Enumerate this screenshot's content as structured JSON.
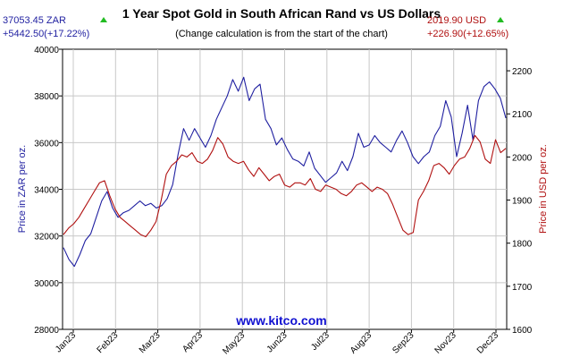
{
  "chart_data": {
    "type": "line",
    "title": "1 Year Spot Gold in South African Rand vs US Dollars",
    "subtitle": "(Change calculation is from the start of the chart)",
    "watermark": "www.kitco.com",
    "left_axis": {
      "label": "Price in ZAR per oz.",
      "ylim": [
        28000,
        40000
      ],
      "ticks": [
        "28000",
        "30000",
        "32000",
        "34000",
        "36000",
        "38000",
        "40000"
      ],
      "color": "#1f1fa0"
    },
    "right_axis": {
      "label": "Price in USD per oz.",
      "ylim": [
        1600,
        2250
      ],
      "ticks": [
        "1600",
        "1700",
        "1800",
        "1900",
        "2000",
        "2100",
        "2200"
      ],
      "color": "#b01010"
    },
    "x_ticks": [
      "Jan23",
      "Feb23",
      "Mar23",
      "Apr23",
      "May23",
      "Jun23",
      "Jul23",
      "Aug23",
      "Sep23",
      "Nov23",
      "Dec23"
    ],
    "grid": true,
    "zar_summary": {
      "price": "37053.45 ZAR",
      "change": "+5442.50(+17.22%)"
    },
    "usd_summary": {
      "price": "2019.90 USD",
      "change": "+226.90(+12.65%)"
    },
    "series": [
      {
        "name": "ZAR",
        "axis": "left",
        "color": "#1f1fa0",
        "values": [
          31500,
          31000,
          30700,
          31200,
          31800,
          32100,
          32800,
          33500,
          33900,
          33200,
          32800,
          33000,
          33100,
          33300,
          33500,
          33300,
          33400,
          33200,
          33300,
          33600,
          34200,
          35500,
          36600,
          36100,
          36600,
          36200,
          35800,
          36300,
          37000,
          37500,
          38000,
          38700,
          38200,
          38800,
          37800,
          38300,
          38500,
          37000,
          36600,
          35900,
          36200,
          35700,
          35300,
          35200,
          35000,
          35600,
          34900,
          34600,
          34300,
          34500,
          34700,
          35200,
          34800,
          35400,
          36400,
          35800,
          35900,
          36300,
          36000,
          35800,
          35600,
          36100,
          36500,
          36000,
          35400,
          35100,
          35400,
          35600,
          36300,
          36700,
          37800,
          37100,
          35400,
          36400,
          37600,
          36100,
          37800,
          38400,
          38600,
          38300,
          37900,
          37050
        ]
      },
      {
        "name": "USD",
        "axis": "right",
        "color": "#b01010",
        "values": [
          1820,
          1835,
          1845,
          1860,
          1880,
          1900,
          1920,
          1940,
          1945,
          1910,
          1880,
          1860,
          1850,
          1840,
          1830,
          1820,
          1815,
          1830,
          1850,
          1900,
          1960,
          1980,
          1990,
          2005,
          2000,
          2010,
          1990,
          1985,
          1995,
          2015,
          2045,
          2030,
          2000,
          1990,
          1985,
          1990,
          1970,
          1955,
          1975,
          1960,
          1945,
          1955,
          1960,
          1935,
          1930,
          1940,
          1940,
          1935,
          1950,
          1925,
          1920,
          1935,
          1930,
          1925,
          1915,
          1910,
          1920,
          1935,
          1940,
          1930,
          1920,
          1930,
          1925,
          1915,
          1890,
          1860,
          1830,
          1820,
          1825,
          1900,
          1920,
          1945,
          1980,
          1985,
          1975,
          1960,
          1980,
          1995,
          2000,
          2020,
          2050,
          2035,
          1995,
          1985,
          2040,
          2010,
          2020
        ]
      }
    ]
  }
}
